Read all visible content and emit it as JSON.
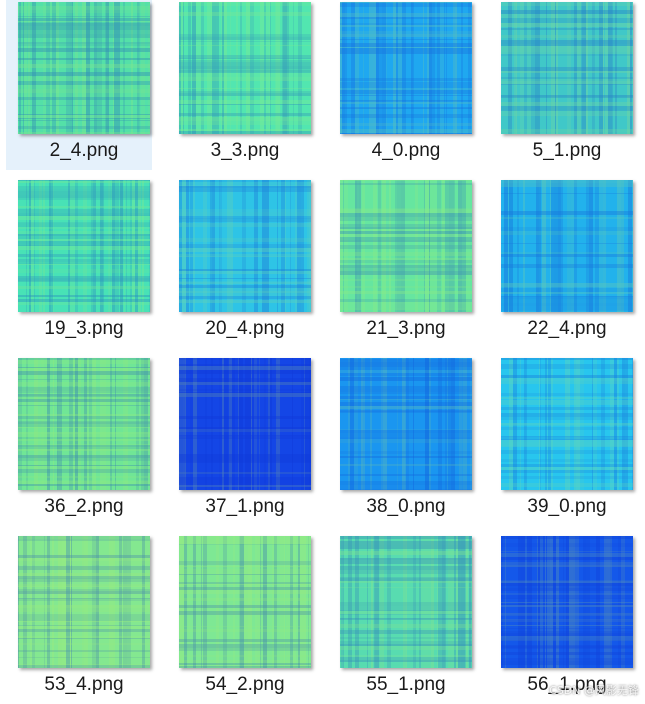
{
  "files": [
    {
      "name": "2_4.png",
      "tone": "#54e0a8",
      "selected": true
    },
    {
      "name": "3_3.png",
      "tone": "#52e6b0",
      "selected": false
    },
    {
      "name": "4_0.png",
      "tone": "#1fa8f0",
      "selected": false
    },
    {
      "name": "5_1.png",
      "tone": "#40c8c8",
      "selected": false
    },
    {
      "name": "19_3.png",
      "tone": "#48e2b6",
      "selected": false
    },
    {
      "name": "20_4.png",
      "tone": "#2ec4e6",
      "selected": false
    },
    {
      "name": "21_3.png",
      "tone": "#66e6a0",
      "selected": false
    },
    {
      "name": "22_4.png",
      "tone": "#22b2ec",
      "selected": false
    },
    {
      "name": "36_2.png",
      "tone": "#70e696",
      "selected": false
    },
    {
      "name": "37_1.png",
      "tone": "#1446e6",
      "selected": false
    },
    {
      "name": "38_0.png",
      "tone": "#1a96f0",
      "selected": false
    },
    {
      "name": "39_0.png",
      "tone": "#28c6ee",
      "selected": false
    },
    {
      "name": "53_4.png",
      "tone": "#84e890",
      "selected": false
    },
    {
      "name": "54_2.png",
      "tone": "#7ee894",
      "selected": false
    },
    {
      "name": "55_1.png",
      "tone": "#58dcb0",
      "selected": false
    },
    {
      "name": "56_1.png",
      "tone": "#1458ea",
      "selected": false
    }
  ],
  "watermark": "CSDN @风影无锋"
}
